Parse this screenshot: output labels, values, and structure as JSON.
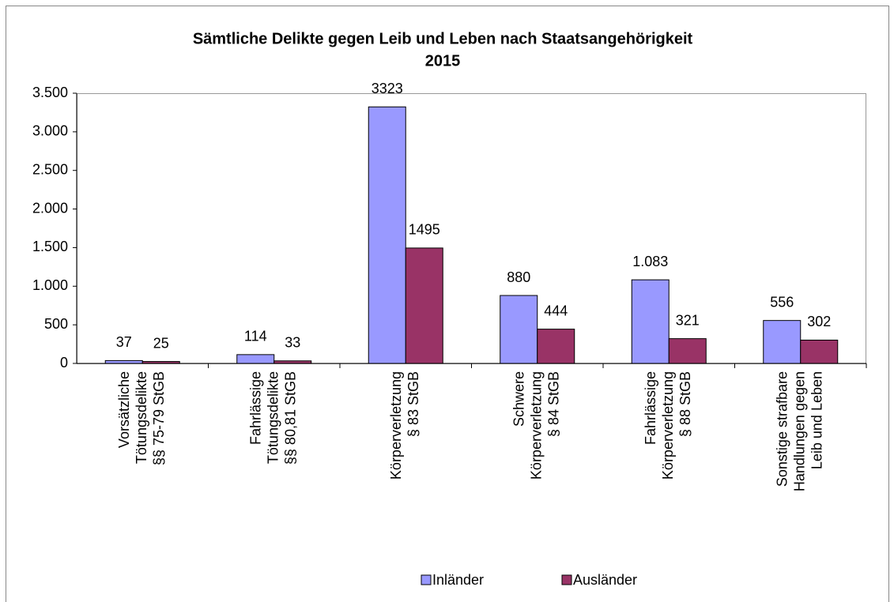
{
  "chart_data": {
    "type": "bar",
    "title": [
      "Sämtliche Delikte gegen Leib und Leben nach Staatsangehörigkeit",
      "2015"
    ],
    "categories": [
      [
        "Vorsätzliche",
        "Tötungsdelikte",
        "§§ 75-79 StGB"
      ],
      [
        "Fahrlässige",
        "Tötungsdelikte",
        "§§ 80,81 StGB"
      ],
      [
        "Körperverletzung",
        "§ 83 StGB"
      ],
      [
        "Schwere",
        "Körperverletzung",
        "§ 84 StGB"
      ],
      [
        "Fahrlässige",
        "Körperverletzung",
        "§ 88 StGB"
      ],
      [
        "Sonstige strafbare",
        "Handlungen gegen",
        "Leib und Leben"
      ]
    ],
    "series": [
      {
        "name": "Inländer",
        "color": "#9999ff",
        "values": [
          37,
          114,
          3323,
          880,
          1083,
          556
        ],
        "value_labels": [
          "37",
          "114",
          "3323",
          "880",
          "1.083",
          "556"
        ]
      },
      {
        "name": "Ausländer",
        "color": "#993366",
        "values": [
          25,
          33,
          1495,
          444,
          321,
          302
        ]
      }
    ],
    "ylim": [
      0,
      3500
    ],
    "yticks": [
      0,
      500,
      {
        "value": 1000,
        "label": "1.000"
      },
      {
        "value": 1500,
        "label": "1.500"
      },
      {
        "value": 2000,
        "label": "2.000"
      },
      {
        "value": 2500,
        "label": "2.500"
      },
      {
        "value": 3000,
        "label": "3.000"
      },
      {
        "value": 3500,
        "label": "3.500"
      }
    ],
    "legend": "bottom"
  }
}
